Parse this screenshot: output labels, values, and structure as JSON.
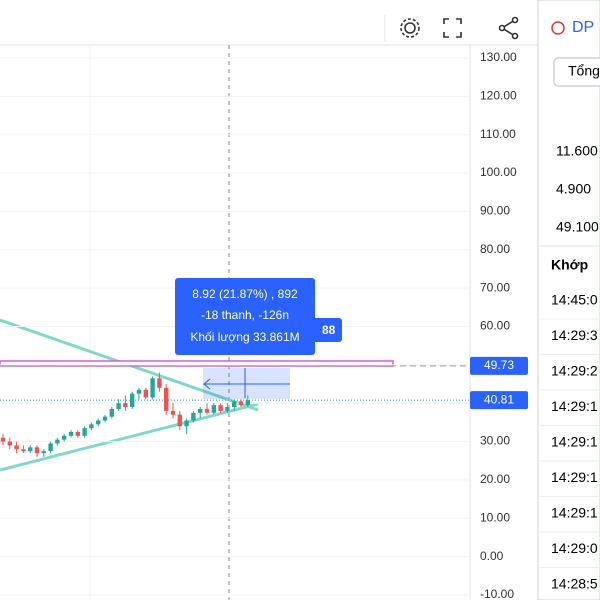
{
  "price_axis": {
    "ticks": [
      {
        "value": 130,
        "label": "130.00"
      },
      {
        "value": 120,
        "label": "120.00"
      },
      {
        "value": 110,
        "label": "110.00"
      },
      {
        "value": 100,
        "label": "100.00"
      },
      {
        "value": 90,
        "label": "90.00"
      },
      {
        "value": 80,
        "label": "80.00"
      },
      {
        "value": 70,
        "label": "70.00"
      },
      {
        "value": 60,
        "label": "60.00"
      },
      {
        "value": 50,
        "label": "50.00"
      },
      {
        "value": 40,
        "label": "40.00"
      },
      {
        "value": 30,
        "label": "30.00"
      },
      {
        "value": 20,
        "label": "20.00"
      },
      {
        "value": 10,
        "label": "10.00"
      },
      {
        "value": 0,
        "label": "0.00"
      },
      {
        "value": -10,
        "label": "-10.00"
      }
    ]
  },
  "price_labels": [
    {
      "value": 49.73,
      "label": "49.73"
    },
    {
      "value": 40.81,
      "label": "40.81"
    }
  ],
  "tooltip": {
    "lines": [
      "8.92 (21.87%) , 892",
      "-18 thanh, -126n",
      "Khối lượng 33.861M"
    ],
    "hidden_label": "88"
  },
  "candles": [
    [
      31,
      32,
      29,
      30
    ],
    [
      30,
      31,
      28,
      29
    ],
    [
      29,
      30,
      27,
      28
    ],
    [
      28,
      29,
      27,
      27.5
    ],
    [
      27.5,
      29,
      27,
      28.5
    ],
    [
      28.5,
      29,
      26,
      27
    ],
    [
      27,
      28,
      26,
      27.5
    ],
    [
      27.5,
      30,
      27,
      29.5
    ],
    [
      29.5,
      31,
      29,
      30.5
    ],
    [
      30.5,
      32,
      30,
      31.5
    ],
    [
      31.5,
      33,
      31,
      32.5
    ],
    [
      32.5,
      33,
      31,
      31.5
    ],
    [
      31.5,
      34,
      31,
      33.5
    ],
    [
      33.5,
      35,
      33,
      34.5
    ],
    [
      34.5,
      36,
      34,
      35.5
    ],
    [
      35.5,
      37,
      35,
      36.5
    ],
    [
      36.5,
      39,
      36,
      38.5
    ],
    [
      38.5,
      41,
      38,
      40
    ],
    [
      40,
      42,
      38,
      39
    ],
    [
      39,
      43,
      38.5,
      42.5
    ],
    [
      42.5,
      44,
      41,
      43.5
    ],
    [
      43.5,
      44,
      41,
      41.5
    ],
    [
      41.5,
      47,
      41,
      46.5
    ],
    [
      46.5,
      48,
      43,
      44
    ],
    [
      44,
      45,
      37,
      38
    ],
    [
      38,
      40,
      36,
      37
    ],
    [
      37,
      38,
      33,
      34
    ],
    [
      34,
      36,
      32,
      35.5
    ],
    [
      35.5,
      38,
      35,
      37.5
    ],
    [
      37.5,
      39,
      36,
      38.5
    ],
    [
      38.5,
      40,
      37,
      37.5
    ],
    [
      37.5,
      40,
      37,
      39.5
    ],
    [
      39.5,
      40,
      37.5,
      38
    ],
    [
      38,
      40,
      37.5,
      39
    ],
    [
      39,
      41,
      38,
      40.5
    ],
    [
      40.5,
      41,
      39,
      39.5
    ],
    [
      39.5,
      42,
      39,
      40.81
    ]
  ],
  "panel": {
    "title": "DP",
    "button": "Tổng",
    "stats": [
      "11.600",
      "4.900",
      "49.100"
    ],
    "header": "Khớp",
    "times": [
      "14:45:0",
      "14:29:3",
      "14:29:2",
      "14:29:1",
      "14:29:1",
      "14:29:1",
      "14:29:1",
      "14:29:0",
      "14:28:5"
    ]
  }
}
